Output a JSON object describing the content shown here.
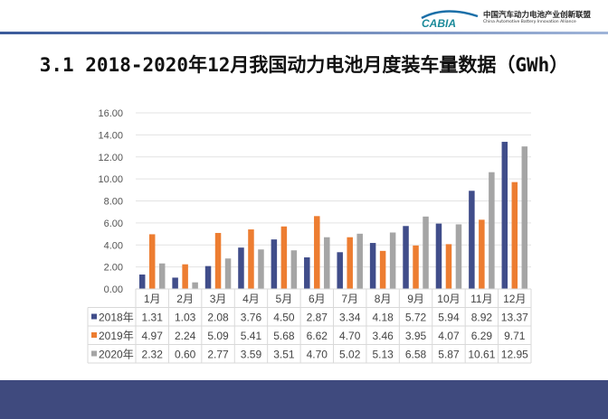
{
  "logo": {
    "text": "CABIA",
    "cn": "中国汽车动力电池产业创新联盟",
    "en": "China Automotive Battery Innovation Alliance"
  },
  "title": "3.1 2018-2020年12月我国动力电池月度装车量数据（GWh）",
  "chart_data": {
    "type": "bar",
    "title": "",
    "categories": [
      "1月",
      "2月",
      "3月",
      "4月",
      "5月",
      "6月",
      "7月",
      "8月",
      "9月",
      "10月",
      "11月",
      "12月"
    ],
    "series": [
      {
        "name": "2018年",
        "color": "#404d8a",
        "values": [
          1.31,
          1.03,
          2.08,
          3.76,
          4.5,
          2.87,
          3.34,
          4.18,
          5.72,
          5.94,
          8.92,
          13.37
        ]
      },
      {
        "name": "2019年",
        "color": "#ed7d31",
        "values": [
          4.97,
          2.24,
          5.09,
          5.41,
          5.68,
          6.62,
          4.7,
          3.46,
          3.95,
          4.07,
          6.29,
          9.71
        ]
      },
      {
        "name": "2020年",
        "color": "#a5a5a5",
        "values": [
          2.32,
          0.6,
          2.77,
          3.59,
          3.51,
          4.7,
          5.02,
          5.13,
          6.58,
          5.87,
          10.61,
          12.95
        ]
      }
    ],
    "ylim": [
      0,
      16
    ],
    "yticks": [
      "0.00",
      "2.00",
      "4.00",
      "6.00",
      "8.00",
      "10.00",
      "12.00",
      "14.00",
      "16.00"
    ],
    "grid": true,
    "legend": "data-table"
  }
}
